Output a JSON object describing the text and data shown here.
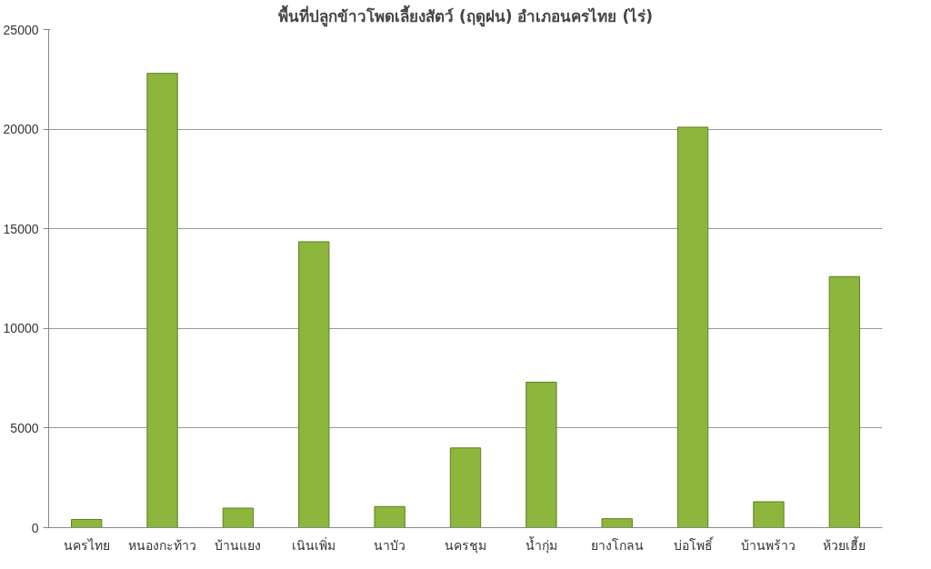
{
  "chart_data": {
    "type": "bar",
    "title": "พื้นที่ปลูกข้าวโพดเลี้ยงสัตว์ (ฤดูฝน) อำเภอนครไทย (ไร่)",
    "categories": [
      "นครไทย",
      "หนองกะท้าว",
      "บ้านแยง",
      "เนินเพิ่ม",
      "นาบัว",
      "นครชุม",
      "น้ำกุ่ม",
      "ยางโกลน",
      "บ่อโพธิ์",
      "บ้านพร้าว",
      "ห้วยเฮี้ย"
    ],
    "values": [
      410,
      22800,
      980,
      14350,
      1060,
      4000,
      7300,
      450,
      20100,
      1300,
      12600
    ],
    "color": "#8db63c",
    "ylim": [
      0,
      25000
    ],
    "yticks": [
      0,
      5000,
      10000,
      15000,
      20000,
      25000
    ],
    "grid": "y"
  }
}
